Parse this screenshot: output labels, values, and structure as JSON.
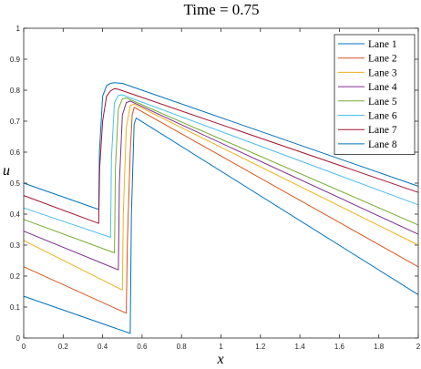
{
  "chart_data": {
    "type": "line",
    "title": "Time = 0.75",
    "xlabel": "x",
    "ylabel": "u",
    "xlim": [
      0,
      2
    ],
    "ylim": [
      0,
      1
    ],
    "xticks": [
      "0",
      "0.2",
      "0.4",
      "0.6",
      "0.8",
      "1",
      "1.2",
      "1.4",
      "1.6",
      "1.8",
      "2"
    ],
    "yticks": [
      "0",
      "0.1",
      "0.2",
      "0.3",
      "0.4",
      "0.5",
      "0.6",
      "0.7",
      "0.8",
      "0.9",
      "1"
    ],
    "grid": false,
    "legend_position": "top-right",
    "series": [
      {
        "name": "Lane 1",
        "color": "#0072BD",
        "x": [
          0,
          0.38,
          0.384,
          0.4,
          0.42,
          0.44,
          0.46,
          0.5,
          2
        ],
        "y": [
          0.5,
          0.415,
          0.6,
          0.78,
          0.815,
          0.822,
          0.824,
          0.822,
          0.49
        ]
      },
      {
        "name": "Lane 2",
        "color": "#D95319",
        "x": [
          0,
          0.52,
          0.525,
          0.54,
          0.55,
          0.56,
          2
        ],
        "y": [
          0.23,
          0.08,
          0.3,
          0.6,
          0.72,
          0.745,
          0.23
        ]
      },
      {
        "name": "Lane 3",
        "color": "#EDB120",
        "x": [
          0,
          0.5,
          0.505,
          0.52,
          0.54,
          0.56,
          2
        ],
        "y": [
          0.315,
          0.155,
          0.4,
          0.68,
          0.75,
          0.755,
          0.3
        ]
      },
      {
        "name": "Lane 4",
        "color": "#7E2F8E",
        "x": [
          0,
          0.48,
          0.485,
          0.5,
          0.52,
          0.54,
          2
        ],
        "y": [
          0.345,
          0.22,
          0.5,
          0.72,
          0.76,
          0.765,
          0.335
        ]
      },
      {
        "name": "Lane 5",
        "color": "#77AC30",
        "x": [
          0,
          0.46,
          0.465,
          0.48,
          0.5,
          0.52,
          2
        ],
        "y": [
          0.383,
          0.275,
          0.55,
          0.74,
          0.772,
          0.775,
          0.365
        ]
      },
      {
        "name": "Lane 6",
        "color": "#4DBEEE",
        "x": [
          0,
          0.44,
          0.445,
          0.46,
          0.48,
          0.5,
          2
        ],
        "y": [
          0.42,
          0.325,
          0.58,
          0.76,
          0.783,
          0.785,
          0.43
        ]
      },
      {
        "name": "Lane 7",
        "color": "#A2142F",
        "x": [
          0,
          0.38,
          0.385,
          0.4,
          0.42,
          0.44,
          0.46,
          0.48,
          2
        ],
        "y": [
          0.46,
          0.37,
          0.55,
          0.7,
          0.78,
          0.798,
          0.805,
          0.803,
          0.47
        ]
      },
      {
        "name": "Lane 8",
        "color": "#0072BD",
        "x": [
          0,
          0.54,
          0.546,
          0.56,
          0.57,
          2
        ],
        "y": [
          0.135,
          0.015,
          0.4,
          0.69,
          0.71,
          0.14
        ]
      }
    ]
  }
}
